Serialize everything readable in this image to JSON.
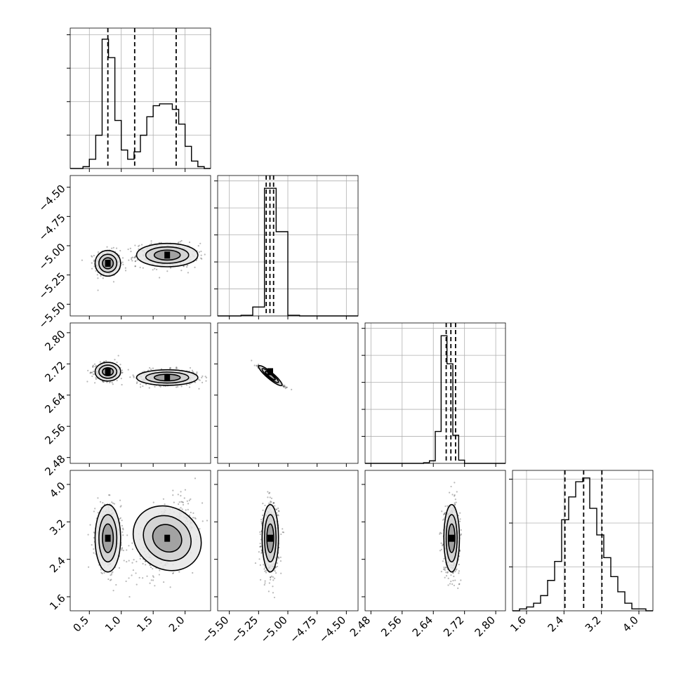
{
  "chart_data": {
    "type": "corner",
    "colors": {
      "ink": "#000000",
      "grid": "#b0b0b0",
      "frame": "#000000"
    },
    "grid": true,
    "parameters": [
      {
        "range": [
          0.2,
          2.4
        ],
        "ticks": [
          0.5,
          1.0,
          1.5,
          2.0
        ],
        "tick_labels": [
          "0.5",
          "1.0",
          "1.5",
          "2.0"
        ]
      },
      {
        "range": [
          -5.6,
          -4.4
        ],
        "ticks": [
          -5.5,
          -5.25,
          -5.0,
          -4.75,
          -4.5
        ],
        "tick_labels": [
          "−5.50",
          "−5.25",
          "−5.00",
          "−4.75",
          "−4.50"
        ]
      },
      {
        "range": [
          2.465,
          2.825
        ],
        "ticks": [
          2.48,
          2.56,
          2.64,
          2.72,
          2.8
        ],
        "tick_labels": [
          "2.48",
          "2.56",
          "2.64",
          "2.72",
          "2.80"
        ]
      },
      {
        "range": [
          1.3,
          4.3
        ],
        "ticks": [
          1.6,
          2.4,
          3.2,
          4.0
        ],
        "tick_labels": [
          "1.6",
          "2.4",
          "3.2",
          "4.0"
        ]
      }
    ],
    "histograms": [
      {
        "bin_edges": [
          0.2,
          0.3,
          0.4,
          0.5,
          0.6,
          0.7,
          0.8,
          0.9,
          1.0,
          1.1,
          1.2,
          1.3,
          1.4,
          1.5,
          1.6,
          1.7,
          1.8,
          1.9,
          2.0,
          2.1,
          2.2,
          2.3,
          2.4
        ],
        "counts": [
          0,
          0,
          0.5,
          2.5,
          9,
          35,
          30,
          13,
          5,
          2.5,
          4.5,
          9,
          14,
          17,
          17.5,
          17.5,
          16,
          12,
          6,
          2,
          0.5,
          0
        ],
        "ymax": 38,
        "ytick_count": 4,
        "quantiles": [
          0.79,
          1.21,
          1.86
        ]
      },
      {
        "bin_edges": [
          -5.6,
          -5.5,
          -5.4,
          -5.3,
          -5.2,
          -5.1,
          -5.0,
          -4.9,
          -4.8,
          -4.7,
          -4.6,
          -4.5,
          -4.4
        ],
        "counts": [
          0,
          0,
          0.5,
          7,
          100,
          66,
          0.5,
          0,
          0,
          0,
          0,
          0
        ],
        "ymax": 110,
        "ytick_count": 5,
        "quantiles": [
          -5.185,
          -5.153,
          -5.122
        ]
      },
      {
        "bin_edges": [
          2.465,
          2.48,
          2.495,
          2.51,
          2.525,
          2.54,
          2.555,
          2.57,
          2.585,
          2.6,
          2.615,
          2.63,
          2.645,
          2.66,
          2.675,
          2.69,
          2.705,
          2.72,
          2.735,
          2.75,
          2.765,
          2.78,
          2.795,
          2.81,
          2.825
        ],
        "counts": [
          0,
          0,
          0,
          0,
          0,
          0,
          0,
          0,
          0,
          0,
          0.5,
          2,
          25,
          100,
          78,
          22,
          2.5,
          0,
          0,
          0,
          0,
          0,
          0,
          0
        ],
        "ymax": 110,
        "ytick_count": 5,
        "quantiles": [
          2.673,
          2.685,
          2.697
        ]
      },
      {
        "bin_edges": [
          1.3,
          1.45,
          1.6,
          1.75,
          1.9,
          2.05,
          2.2,
          2.35,
          2.5,
          2.65,
          2.8,
          2.95,
          3.1,
          3.25,
          3.4,
          3.55,
          3.7,
          3.85,
          4.0,
          4.15,
          4.3
        ],
        "counts": [
          0,
          0.5,
          1,
          2,
          4,
          8,
          13,
          24,
          30,
          34,
          35,
          27,
          20,
          14,
          9,
          5,
          2,
          0.5,
          0.5,
          0
        ],
        "ymax": 37,
        "ytick_count": 3,
        "quantiles": [
          2.42,
          2.82,
          3.21
        ]
      }
    ],
    "pairs": [
      {
        "row": 1,
        "col": 0,
        "clusters": [
          {
            "center": [
              0.79,
              -5.15
            ],
            "sigma": [
              0.1,
              0.055
            ],
            "n": 420
          },
          {
            "center": [
              1.72,
              -5.08
            ],
            "sigma": [
              0.24,
              0.05
            ],
            "n": 460
          }
        ],
        "density_peaks": [
          [
            0.79,
            -5.15
          ],
          [
            1.72,
            -5.08
          ]
        ]
      },
      {
        "row": 2,
        "col": 0,
        "clusters": [
          {
            "center": [
              0.79,
              2.7
            ],
            "sigma": [
              0.1,
              0.012
            ],
            "n": 420
          },
          {
            "center": [
              1.72,
              2.685
            ],
            "sigma": [
              0.24,
              0.01
            ],
            "n": 460
          }
        ],
        "density_peaks": [
          [
            0.79,
            2.7
          ],
          [
            1.72,
            2.685
          ]
        ]
      },
      {
        "row": 2,
        "col": 1,
        "clusters": [
          {
            "center": [
              -5.15,
              2.69
            ],
            "correlation": -0.97,
            "sigma": [
              0.05,
              0.012
            ],
            "n": 600
          }
        ],
        "density_peaks": [
          [
            -5.15,
            2.7
          ]
        ]
      },
      {
        "row": 3,
        "col": 0,
        "clusters": [
          {
            "center": [
              0.79,
              2.85
            ],
            "sigma": [
              0.1,
              0.36
            ],
            "n": 450
          },
          {
            "center": [
              1.72,
              2.85
            ],
            "sigma": [
              0.24,
              0.38
            ],
            "correlation": 0.55,
            "n": 480
          }
        ],
        "density_peaks": [
          [
            0.79,
            2.85
          ],
          [
            1.72,
            2.85
          ]
        ]
      },
      {
        "row": 3,
        "col": 1,
        "clusters": [
          {
            "center": [
              -5.15,
              2.85
            ],
            "sigma": [
              0.035,
              0.36
            ],
            "n": 700
          }
        ],
        "density_peaks": [
          [
            -5.15,
            2.85
          ]
        ]
      },
      {
        "row": 3,
        "col": 2,
        "clusters": [
          {
            "center": [
              2.687,
              2.85
            ],
            "sigma": [
              0.01,
              0.36
            ],
            "n": 700
          }
        ],
        "density_peaks": [
          [
            2.687,
            2.85
          ]
        ]
      }
    ]
  }
}
